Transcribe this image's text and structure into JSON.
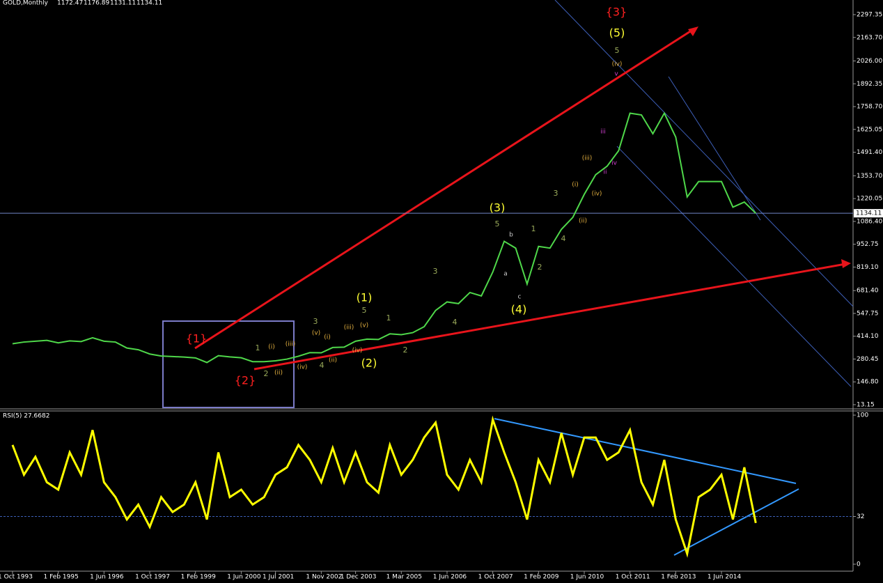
{
  "chart_data": [
    {
      "type": "line",
      "title": "GOLD,Monthly",
      "ohlc": [
        1172.47,
        1176.89,
        1131.11,
        1134.11
      ],
      "color": "#4fd84a",
      "ylim": [
        13.15,
        2297.35
      ],
      "yticks": [
        2297.35,
        {
          "value": 2163.7,
          "label": "2163.70"
        },
        {
          "value": 2026,
          "label": "2026.00"
        },
        1892.35,
        {
          "value": 1758.7,
          "label": "1758.70"
        },
        1625.05,
        {
          "value": 1491.4,
          "label": "1491.40"
        },
        {
          "value": 1353.7,
          "label": "1353.70"
        },
        1220.05,
        {
          "value": 1086.4,
          "label": "1086.40"
        },
        952.75,
        {
          "value": 819.1,
          "label": "819.10"
        },
        {
          "value": 681.4,
          "label": "681.40"
        },
        547.75,
        {
          "value": 414.1,
          "label": "414.10"
        },
        280.45,
        {
          "value": 146.8,
          "label": "146.80"
        },
        13.15
      ],
      "last_price": 1134.11,
      "values": [
        370,
        380,
        385,
        390,
        375,
        387,
        383,
        405,
        385,
        380,
        345,
        335,
        310,
        298,
        295,
        292,
        287,
        260,
        300,
        293,
        288,
        265,
        265,
        270,
        280,
        297,
        318,
        317,
        348,
        350,
        385,
        397,
        395,
        428,
        423,
        435,
        470,
        565,
        615,
        605,
        670,
        650,
        790,
        970,
        930,
        720,
        940,
        930,
        1040,
        1110,
        1245,
        1360,
        1410,
        1500,
        1720,
        1710,
        1600,
        1720,
        1580,
        1230,
        1320,
        1320,
        1320,
        1170,
        1200,
        1134.11
      ],
      "annotations": [
        "{1}",
        "{2}",
        "{3}",
        "(5)",
        "(1)",
        "(2)",
        "(3)",
        "(4)",
        "5",
        "5",
        "5",
        "3",
        "3",
        "3",
        "4",
        "4",
        "4",
        "1",
        "1",
        "1",
        "2",
        "2",
        "2",
        "a",
        "b",
        "c",
        "(iv)",
        "(i)",
        "(ii)",
        "(iii)",
        "(iv)",
        "(v)",
        "(i)",
        "(ii)",
        "(iii)",
        "(iv)",
        "(v)",
        "(iii)",
        "(i)",
        "(iv)",
        "(ii)",
        "iii",
        "ii",
        "iv",
        "v"
      ]
    },
    {
      "type": "line",
      "title": "RSI(5) 27.6682",
      "color": "#ffff00",
      "ylim": [
        0,
        100
      ],
      "yticks": [
        0,
        32,
        100
      ],
      "level": 32,
      "categories": [
        "1 Oct 1993",
        null,
        null,
        null,
        "1 Feb 1995",
        null,
        null,
        null,
        "1 Jun 1996",
        null,
        null,
        null,
        "1 Oct 1997",
        null,
        null,
        null,
        "1 Feb 1999",
        null,
        null,
        null,
        "1 Jun 2000",
        null,
        null,
        "1 Jul 2001",
        null,
        null,
        null,
        "1 Nov 2002",
        null,
        null,
        "1 Dec 2003",
        null,
        null,
        null,
        "1 Mar 2005",
        null,
        null,
        null,
        "1 Jun 2006",
        null,
        null,
        null,
        "1 Oct 2007",
        null,
        null,
        null,
        "1 Feb 2009",
        null,
        null,
        null,
        "1 Jun 2010",
        null,
        null,
        null,
        "1 Oct 2011",
        null,
        null,
        null,
        "1 Feb 2013",
        null,
        null,
        null,
        "1 Jun 2014",
        null,
        null,
        null
      ],
      "values": [
        80,
        60,
        72,
        55,
        50,
        75,
        60,
        90,
        55,
        45,
        30,
        40,
        25,
        45,
        35,
        40,
        55,
        30,
        75,
        45,
        50,
        40,
        45,
        60,
        65,
        80,
        70,
        55,
        78,
        55,
        75,
        55,
        48,
        80,
        60,
        70,
        85,
        95,
        60,
        50,
        70,
        55,
        97,
        75,
        55,
        30,
        70,
        55,
        88,
        60,
        85,
        85,
        70,
        75,
        90,
        55,
        40,
        70,
        30,
        7,
        45,
        50,
        60,
        30,
        65,
        27.6682
      ]
    }
  ]
}
